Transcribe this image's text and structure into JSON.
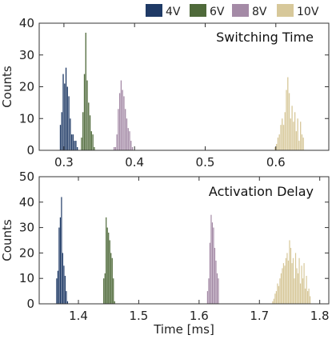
{
  "chart_data": [
    {
      "type": "bar",
      "title": "Switching Time",
      "ylabel": "Counts",
      "xlabel": "",
      "xlim": [
        0.265,
        0.675
      ],
      "ylim": [
        0,
        40
      ],
      "xticks": [
        "0.3",
        "0.4",
        "0.5",
        "0.6"
      ],
      "xtick_values": [
        0.3,
        0.4,
        0.5,
        0.6
      ],
      "yticks": [
        "0",
        "10",
        "20",
        "30",
        "40"
      ],
      "ytick_values": [
        0,
        10,
        20,
        30,
        40
      ],
      "bin_width": 0.002,
      "series": [
        {
          "name": "4V",
          "color": "#1f3a66",
          "x": [
            0.295,
            0.297,
            0.299,
            0.301,
            0.303,
            0.305,
            0.307,
            0.309,
            0.311,
            0.313,
            0.315,
            0.317,
            0.319
          ],
          "values": [
            8,
            12,
            24,
            21,
            26,
            20,
            17,
            10,
            5,
            5,
            3,
            3,
            1
          ]
        },
        {
          "name": "6V",
          "color": "#4f6a3a",
          "x": [
            0.325,
            0.327,
            0.329,
            0.331,
            0.333,
            0.335,
            0.337,
            0.339,
            0.341,
            0.343
          ],
          "values": [
            4,
            12,
            24,
            37,
            22,
            15,
            11,
            6,
            5,
            1
          ]
        },
        {
          "name": "8V",
          "color": "#a48aa6",
          "x": [
            0.371,
            0.373,
            0.375,
            0.377,
            0.379,
            0.381,
            0.383,
            0.385,
            0.387,
            0.389,
            0.391,
            0.393,
            0.395,
            0.397
          ],
          "values": [
            1,
            1,
            5,
            13,
            18,
            22,
            19,
            17,
            13,
            10,
            7,
            6,
            3,
            1
          ]
        },
        {
          "name": "10V",
          "color": "#d7c89a",
          "x": [
            0.599,
            0.601,
            0.603,
            0.605,
            0.607,
            0.609,
            0.611,
            0.613,
            0.615,
            0.617,
            0.619,
            0.621,
            0.623,
            0.625,
            0.627,
            0.629,
            0.631,
            0.633,
            0.635,
            0.637,
            0.639
          ],
          "values": [
            1,
            2,
            4,
            5,
            8,
            10,
            8,
            12,
            19,
            23,
            18,
            10,
            14,
            9,
            12,
            6,
            10,
            3,
            9,
            5,
            4
          ]
        }
      ]
    },
    {
      "type": "bar",
      "title": "Activation Delay",
      "ylabel": "Counts",
      "xlabel": "Time [ms]",
      "xlim": [
        1.335,
        1.815
      ],
      "ylim": [
        0,
        50
      ],
      "xticks": [
        "1.4",
        "1.5",
        "1.6",
        "1.7",
        "1.8"
      ],
      "xtick_values": [
        1.4,
        1.5,
        1.6,
        1.7,
        1.8
      ],
      "yticks": [
        "0",
        "10",
        "20",
        "30",
        "40",
        "50"
      ],
      "ytick_values": [
        0,
        10,
        20,
        30,
        40,
        50
      ],
      "bin_width": 0.002,
      "series": [
        {
          "name": "4V",
          "color": "#1f3a66",
          "x": [
            1.364,
            1.366,
            1.368,
            1.37,
            1.372,
            1.374,
            1.376,
            1.378,
            1.38,
            1.382
          ],
          "values": [
            10,
            13,
            30,
            34,
            42,
            20,
            15,
            11,
            5,
            1
          ]
        },
        {
          "name": "6V",
          "color": "#4f6a3a",
          "x": [
            1.442,
            1.444,
            1.446,
            1.448,
            1.45,
            1.452,
            1.454,
            1.456,
            1.458,
            1.46
          ],
          "values": [
            10,
            12,
            34,
            30,
            28,
            25,
            20,
            18,
            10,
            1
          ]
        },
        {
          "name": "8V",
          "color": "#a48aa6",
          "x": [
            1.614,
            1.616,
            1.618,
            1.62,
            1.622,
            1.624,
            1.626,
            1.628,
            1.63,
            1.632
          ],
          "values": [
            5,
            10,
            24,
            35,
            32,
            30,
            22,
            17,
            12,
            10
          ]
        },
        {
          "name": "10V",
          "color": "#d7c89a",
          "x": [
            1.722,
            1.724,
            1.726,
            1.728,
            1.73,
            1.732,
            1.734,
            1.736,
            1.738,
            1.74,
            1.742,
            1.744,
            1.746,
            1.748,
            1.75,
            1.752,
            1.754,
            1.756,
            1.758,
            1.76,
            1.762,
            1.764,
            1.766,
            1.768,
            1.77,
            1.772,
            1.774,
            1.776,
            1.778,
            1.78,
            1.782,
            1.784
          ],
          "values": [
            1,
            2,
            4,
            5,
            8,
            7,
            10,
            12,
            14,
            16,
            15,
            18,
            20,
            17,
            25,
            22,
            16,
            18,
            10,
            20,
            14,
            12,
            18,
            8,
            15,
            10,
            16,
            6,
            11,
            5,
            6,
            3
          ]
        }
      ]
    }
  ],
  "legend": {
    "position": "top-right",
    "items": [
      {
        "label": "4V",
        "color": "#1f3a66"
      },
      {
        "label": "6V",
        "color": "#4f6a3a"
      },
      {
        "label": "8V",
        "color": "#a48aa6"
      },
      {
        "label": "10V",
        "color": "#d7c89a"
      }
    ]
  }
}
